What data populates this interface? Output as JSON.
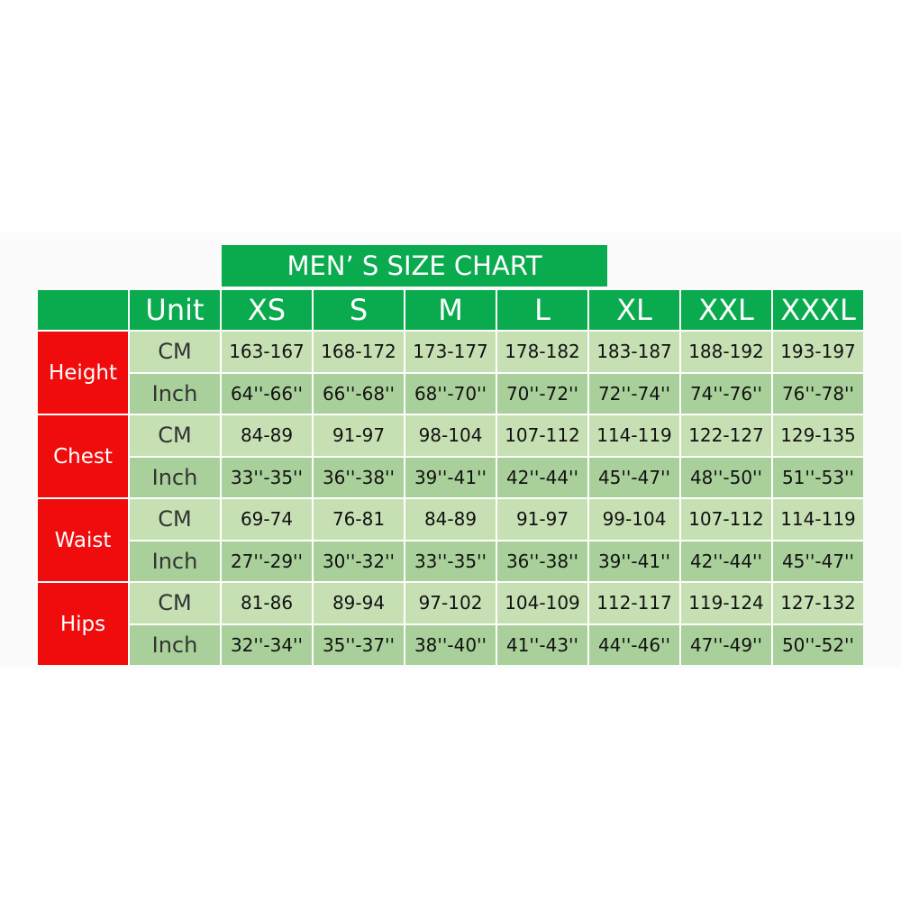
{
  "title": "MEN’ S SIZE CHART",
  "colors": {
    "header": "#0aab4e",
    "category": "#f00c0c",
    "cm_row": "#c6e0b4",
    "inch_row": "#a9d09a"
  },
  "header": [
    "",
    "Unit",
    "XS",
    "S",
    "M",
    "L",
    "XL",
    "XXL",
    "XXXL"
  ],
  "groups": [
    {
      "label": "Height",
      "rows": [
        {
          "unit": "CM",
          "values": [
            "163-167",
            "168-172",
            "173-177",
            "178-182",
            "183-187",
            "188-192",
            "193-197"
          ]
        },
        {
          "unit": "Inch",
          "values": [
            "64''-66''",
            "66''-68''",
            "68''-70''",
            "70''-72''",
            "72''-74''",
            "74''-76''",
            "76''-78''"
          ]
        }
      ]
    },
    {
      "label": "Chest",
      "rows": [
        {
          "unit": "CM",
          "values": [
            "84-89",
            "91-97",
            "98-104",
            "107-112",
            "114-119",
            "122-127",
            "129-135"
          ]
        },
        {
          "unit": "Inch",
          "values": [
            "33''-35''",
            "36''-38''",
            "39''-41''",
            "42''-44''",
            "45''-47''",
            "48''-50''",
            "51''-53''"
          ]
        }
      ]
    },
    {
      "label": "Waist",
      "rows": [
        {
          "unit": "CM",
          "values": [
            "69-74",
            "76-81",
            "84-89",
            "91-97",
            "99-104",
            "107-112",
            "114-119"
          ]
        },
        {
          "unit": "Inch",
          "values": [
            "27''-29''",
            "30''-32''",
            "33''-35''",
            "36''-38''",
            "39''-41''",
            "42''-44''",
            "45''-47''"
          ]
        }
      ]
    },
    {
      "label": "Hips",
      "rows": [
        {
          "unit": "CM",
          "values": [
            "81-86",
            "89-94",
            "97-102",
            "104-109",
            "112-117",
            "119-124",
            "127-132"
          ]
        },
        {
          "unit": "Inch",
          "values": [
            "32''-34''",
            "35''-37''",
            "38''-40''",
            "41''-43''",
            "44''-46''",
            "47''-49''",
            "50''-52''"
          ]
        }
      ]
    }
  ]
}
